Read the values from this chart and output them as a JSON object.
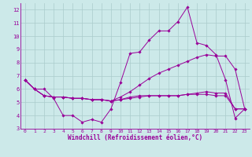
{
  "title": "",
  "xlabel": "Windchill (Refroidissement éolien,°C)",
  "ylabel": "",
  "bg_color": "#cce9e9",
  "line_color": "#990099",
  "grid_color": "#aacccc",
  "xlim": [
    -0.5,
    23.5
  ],
  "ylim": [
    3,
    12.5
  ],
  "xticks": [
    0,
    1,
    2,
    3,
    4,
    5,
    6,
    7,
    8,
    9,
    10,
    11,
    12,
    13,
    14,
    15,
    16,
    17,
    18,
    19,
    20,
    21,
    22,
    23
  ],
  "yticks": [
    3,
    4,
    5,
    6,
    7,
    8,
    9,
    10,
    11,
    12
  ],
  "series": [
    [
      6.7,
      6.0,
      6.0,
      5.3,
      4.0,
      4.0,
      3.5,
      3.7,
      3.5,
      4.5,
      6.5,
      8.7,
      8.8,
      9.7,
      10.4,
      10.4,
      11.1,
      12.2,
      9.5,
      9.3,
      8.6,
      6.7,
      3.8,
      4.5
    ],
    [
      6.7,
      6.0,
      5.5,
      5.4,
      5.4,
      5.3,
      5.3,
      5.2,
      5.2,
      5.1,
      5.4,
      5.8,
      6.3,
      6.8,
      7.2,
      7.5,
      7.8,
      8.1,
      8.4,
      8.6,
      8.5,
      8.5,
      7.5,
      4.5
    ],
    [
      6.7,
      6.0,
      5.5,
      5.4,
      5.4,
      5.3,
      5.3,
      5.2,
      5.2,
      5.1,
      5.2,
      5.3,
      5.4,
      5.5,
      5.5,
      5.5,
      5.5,
      5.6,
      5.6,
      5.6,
      5.5,
      5.5,
      4.5,
      4.5
    ],
    [
      6.7,
      6.0,
      5.5,
      5.4,
      5.4,
      5.3,
      5.3,
      5.2,
      5.2,
      5.1,
      5.2,
      5.4,
      5.5,
      5.5,
      5.5,
      5.5,
      5.5,
      5.6,
      5.7,
      5.8,
      5.7,
      5.7,
      4.5,
      4.5
    ]
  ]
}
